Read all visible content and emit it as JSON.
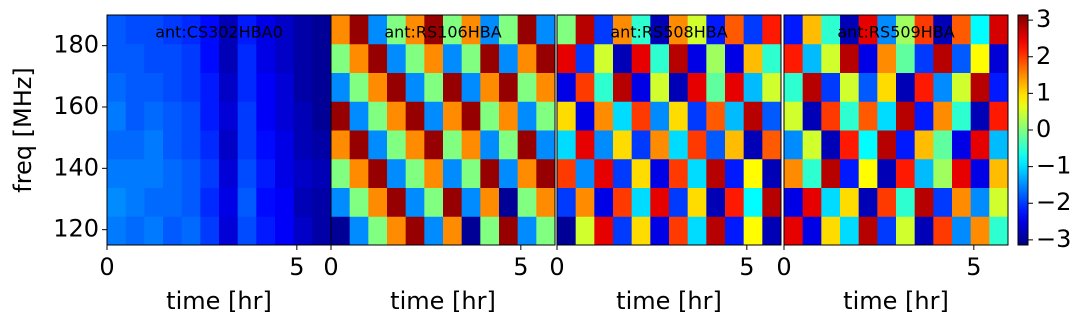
{
  "chart_data": [
    {
      "type": "heatmap",
      "title": "ant:CS302HBA0",
      "xlabel": "time [hr]",
      "ylabel": "freq [MHz]",
      "xlim": [
        0,
        5.9
      ],
      "ylim": [
        115,
        190
      ],
      "xticks": [
        0,
        5
      ],
      "yticks": [
        120,
        140,
        160,
        180
      ],
      "z": [
        [
          -1.6,
          -1.7,
          -1.6,
          -1.8,
          -1.7,
          -2.0,
          -2.6,
          -1.9,
          -2.2,
          -2.4,
          -2.7,
          -2.9
        ],
        [
          -1.5,
          -1.6,
          -1.7,
          -1.7,
          -1.8,
          -2.1,
          -2.5,
          -1.8,
          -2.3,
          -2.4,
          -2.8,
          -2.9
        ],
        [
          -1.6,
          -1.6,
          -1.6,
          -1.7,
          -1.8,
          -2.0,
          -2.6,
          -1.9,
          -2.2,
          -2.5,
          -2.7,
          -2.8
        ],
        [
          -1.7,
          -1.7,
          -1.6,
          -1.8,
          -1.9,
          -2.1,
          -2.7,
          -2.0,
          -2.3,
          -2.5,
          -2.8,
          -2.9
        ],
        [
          -1.6,
          -1.8,
          -1.7,
          -1.8,
          -1.9,
          -2.2,
          -2.6,
          -2.0,
          -2.4,
          -2.6,
          -2.8,
          -3.0
        ],
        [
          -1.7,
          -1.8,
          -1.8,
          -1.9,
          -2.0,
          -2.2,
          -2.7,
          -2.1,
          -2.4,
          -2.6,
          -2.9,
          -3.0
        ],
        [
          -1.8,
          -1.8,
          -1.9,
          -1.9,
          -2.0,
          -2.3,
          -2.8,
          -2.1,
          -2.5,
          -2.7,
          -2.9,
          -3.0
        ],
        [
          -1.8,
          -1.9,
          -1.9,
          -2.0,
          -2.1,
          -2.3,
          -2.8,
          -2.2,
          -2.5,
          -2.7,
          -2.9,
          -3.0
        ]
      ]
    },
    {
      "type": "heatmap",
      "title": "ant:RS106HBA",
      "xlabel": "time [hr]",
      "xlim": [
        0,
        5.9
      ],
      "ylim": [
        115,
        190
      ],
      "xticks": [
        0,
        5
      ],
      "z": [
        [
          -3.0,
          -1.5,
          0.0,
          1.5,
          3.0,
          -1.5,
          1.5,
          -3.0,
          0.0,
          3.0,
          -1.5,
          0.0
        ],
        [
          -1.5,
          0.0,
          1.5,
          3.0,
          -1.5,
          0.0,
          3.0,
          -1.5,
          1.5,
          -3.0,
          0.0,
          1.5
        ],
        [
          0.0,
          1.5,
          3.0,
          -1.5,
          0.0,
          1.5,
          -1.5,
          0.0,
          3.0,
          -1.5,
          1.5,
          3.0
        ],
        [
          1.5,
          3.0,
          -1.5,
          0.0,
          1.5,
          3.0,
          0.0,
          1.5,
          -1.5,
          0.0,
          3.0,
          -1.5
        ],
        [
          3.0,
          -1.5,
          0.0,
          1.5,
          3.0,
          -1.5,
          1.5,
          3.0,
          0.0,
          1.5,
          -1.5,
          0.0
        ],
        [
          -1.5,
          0.0,
          1.5,
          3.0,
          -1.5,
          0.0,
          3.0,
          -1.5,
          1.5,
          3.0,
          0.0,
          1.5
        ],
        [
          0.0,
          1.5,
          3.0,
          -1.5,
          0.0,
          1.5,
          -1.5,
          0.0,
          3.0,
          -1.5,
          1.5,
          3.0
        ],
        [
          1.5,
          3.0,
          -1.5,
          0.0,
          1.5,
          3.0,
          0.0,
          1.5,
          -1.5,
          0.0,
          3.0,
          -1.5
        ]
      ]
    },
    {
      "type": "heatmap",
      "title": "ant:RS508HBA",
      "xlabel": "time [hr]",
      "xlim": [
        0,
        5.9
      ],
      "ylim": [
        115,
        190
      ],
      "xticks": [
        0,
        5
      ],
      "z": [
        [
          -3.0,
          0.5,
          2.5,
          -2.0,
          1.0,
          -2.5,
          2.0,
          -1.0,
          2.8,
          -2.2,
          0.8,
          -2.8
        ],
        [
          -2.0,
          1.5,
          -2.5,
          2.0,
          -1.0,
          2.5,
          -2.0,
          1.0,
          -2.8,
          2.2,
          -0.8,
          2.8
        ],
        [
          2.0,
          -1.5,
          2.5,
          -2.0,
          1.0,
          -2.5,
          2.0,
          -1.0,
          2.8,
          -2.2,
          0.8,
          -2.8
        ],
        [
          -1.0,
          2.5,
          -1.5,
          1.0,
          -2.0,
          1.5,
          -1.0,
          2.0,
          -1.8,
          1.2,
          -2.8,
          1.8
        ],
        [
          1.0,
          -2.5,
          1.5,
          -1.0,
          2.0,
          -1.5,
          1.0,
          -2.0,
          1.8,
          -1.2,
          2.8,
          -1.8
        ],
        [
          -2.5,
          2.0,
          -0.5,
          2.8,
          -2.5,
          0.5,
          -2.8,
          2.5,
          -0.2,
          2.5,
          -1.2,
          0.5
        ],
        [
          2.5,
          -2.0,
          0.5,
          -2.8,
          2.5,
          -0.5,
          2.8,
          -2.5,
          0.2,
          -2.5,
          1.2,
          -0.5
        ],
        [
          0.0,
          2.8,
          -2.0,
          1.5,
          -0.5,
          -2.8,
          1.5,
          0.5,
          -2.2,
          1.8,
          -2.0,
          2.2
        ]
      ]
    },
    {
      "type": "heatmap",
      "title": "ant:RS509HBA",
      "xlabel": "time [hr]",
      "xlim": [
        0,
        5.9
      ],
      "ylim": [
        115,
        190
      ],
      "xticks": [
        0,
        5
      ],
      "z": [
        [
          2.5,
          -2.5,
          1.0,
          -1.0,
          2.8,
          -2.0,
          0.5,
          -2.8,
          2.0,
          -1.5,
          1.5,
          -0.5
        ],
        [
          -2.5,
          2.5,
          -1.0,
          1.0,
          -2.8,
          2.0,
          -0.5,
          2.8,
          -2.0,
          1.5,
          -1.5,
          0.5
        ],
        [
          1.5,
          -0.5,
          2.8,
          -2.2,
          0.8,
          -2.8,
          2.2,
          -1.2,
          0.2,
          2.5,
          -2.5,
          1.2
        ],
        [
          -1.5,
          0.5,
          -2.8,
          2.2,
          -0.8,
          2.8,
          -2.2,
          1.2,
          -0.2,
          -2.5,
          2.5,
          -1.2
        ],
        [
          0.5,
          -2.8,
          2.0,
          -0.5,
          1.8,
          -1.0,
          2.8,
          -2.2,
          1.5,
          -0.5,
          -2.8,
          2.2
        ],
        [
          -0.5,
          2.8,
          -2.0,
          0.5,
          -1.8,
          1.0,
          -2.8,
          2.2,
          -1.5,
          0.5,
          2.8,
          -2.2
        ],
        [
          2.2,
          -1.2,
          0.5,
          2.8,
          -2.5,
          1.5,
          -0.2,
          -2.0,
          2.8,
          -1.8,
          0.8,
          -2.6
        ],
        [
          -2.2,
          1.2,
          -0.5,
          -2.8,
          2.5,
          -1.5,
          0.2,
          2.0,
          -2.8,
          1.8,
          -0.8,
          2.6
        ]
      ]
    }
  ],
  "colorbar": {
    "colormap": "jet",
    "clim": [
      -3.14,
      3.14
    ],
    "ticks": [
      3,
      2,
      1,
      0,
      {
        "value": -1,
        "label": "−1"
      },
      {
        "value": -2,
        "label": "−2"
      },
      {
        "value": -3,
        "label": "−3"
      }
    ]
  }
}
